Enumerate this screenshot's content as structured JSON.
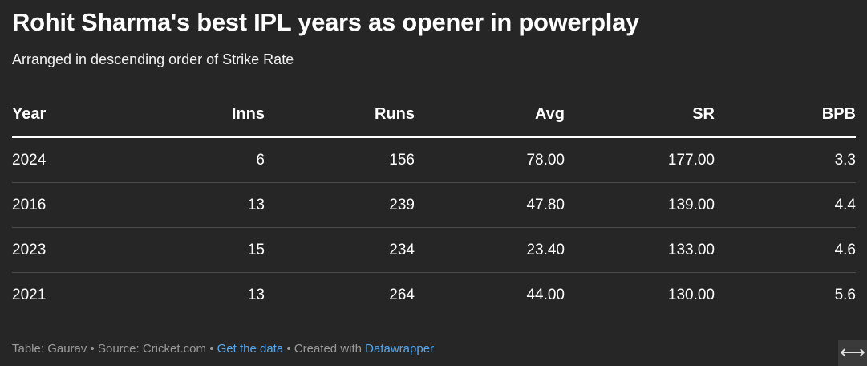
{
  "chart_data": {
    "type": "table",
    "title": "Rohit Sharma's best IPL years as opener in powerplay",
    "subtitle": "Arranged in descending order of Strike Rate",
    "columns": [
      "Year",
      "Inns",
      "Runs",
      "Avg",
      "SR",
      "BPB"
    ],
    "rows": [
      [
        "2024",
        "6",
        "156",
        "78.00",
        "177.00",
        "3.3"
      ],
      [
        "2016",
        "13",
        "239",
        "47.80",
        "139.00",
        "4.4"
      ],
      [
        "2023",
        "15",
        "234",
        "23.40",
        "133.00",
        "4.6"
      ],
      [
        "2021",
        "13",
        "264",
        "44.00",
        "130.00",
        "5.6"
      ]
    ]
  },
  "footer": {
    "table_by": "Table: Gaurav",
    "separator": " • ",
    "source": "Source: Cricket.com",
    "get_data": "Get the data",
    "created_with": "Created with ",
    "tool": "Datawrapper"
  },
  "expand_icon": {
    "glyph": "⟷",
    "name": "expand-arrows-icon"
  },
  "colors": {
    "background": "#262626",
    "text": "#ffffff",
    "muted": "#9a9a9a",
    "link": "#5aa6ea",
    "row_divider": "#4a4a4a"
  }
}
